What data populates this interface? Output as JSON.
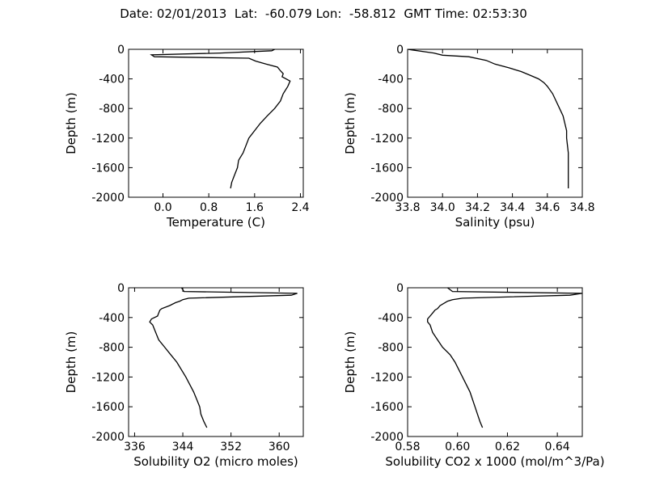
{
  "title": "Date: 02/01/2013  Lat:  -60.079 Lon:  -58.812  GMT Time: 02:53:30",
  "chart_data": [
    {
      "type": "line",
      "xlabel": "Temperature (C)",
      "ylabel": "Depth (m)",
      "xlim": [
        -0.6,
        2.45
      ],
      "ylim": [
        -2000,
        0
      ],
      "xticks": [
        0.0,
        0.8,
        1.6,
        2.4
      ],
      "xtick_labels": [
        "0.0",
        "0.8",
        "1.6",
        "2.4"
      ],
      "yticks": [
        0,
        -400,
        -800,
        -1200,
        -1600,
        -2000
      ],
      "ytick_labels": [
        "0",
        "-400",
        "-800",
        "-1200",
        "-1600",
        "-2000"
      ],
      "series": [
        {
          "depth": [
            0,
            -20,
            -50,
            -75,
            -100,
            -120,
            -160,
            -200,
            -240,
            -290,
            -330,
            -370,
            -430,
            -500,
            -600,
            -700,
            -800,
            -900,
            -1000,
            -1200,
            -1400,
            -1500,
            -1600,
            -1700,
            -1800,
            -1880
          ],
          "values": [
            1.95,
            1.9,
            1.0,
            -0.2,
            -0.15,
            1.5,
            1.62,
            1.8,
            2.0,
            2.05,
            2.1,
            2.08,
            2.22,
            2.18,
            2.1,
            2.05,
            1.95,
            1.82,
            1.7,
            1.5,
            1.4,
            1.32,
            1.3,
            1.25,
            1.2,
            1.18
          ]
        }
      ]
    },
    {
      "type": "line",
      "xlabel": "Salinity (psu)",
      "ylabel": "Depth (m)",
      "xlim": [
        33.8,
        34.8
      ],
      "ylim": [
        -2000,
        0
      ],
      "xticks": [
        33.8,
        34.0,
        34.2,
        34.4,
        34.6,
        34.8
      ],
      "xtick_labels": [
        "33.8",
        "34.0",
        "34.2",
        "34.4",
        "34.6",
        "34.8"
      ],
      "yticks": [
        0,
        -400,
        -800,
        -1200,
        -1600,
        -2000
      ],
      "ytick_labels": [
        "0",
        "-400",
        "-800",
        "-1200",
        "-1600",
        "-2000"
      ],
      "series": [
        {
          "depth": [
            0,
            -50,
            -80,
            -100,
            -150,
            -200,
            -250,
            -300,
            -350,
            -400,
            -450,
            -500,
            -600,
            -700,
            -800,
            -900,
            -1000,
            -1100,
            -1200,
            -1400,
            -1600,
            -1880
          ],
          "values": [
            33.8,
            33.95,
            34.0,
            34.15,
            34.25,
            34.3,
            34.38,
            34.45,
            34.5,
            34.55,
            34.58,
            34.6,
            34.63,
            34.65,
            34.67,
            34.69,
            34.7,
            34.71,
            34.71,
            34.72,
            34.72,
            34.72
          ]
        }
      ]
    },
    {
      "type": "line",
      "xlabel": "Solubility O2 (micro moles)",
      "ylabel": "Depth (m)",
      "xlim": [
        335,
        364
      ],
      "ylim": [
        -2000,
        0
      ],
      "xticks": [
        336,
        344,
        352,
        360
      ],
      "xtick_labels": [
        "336",
        "344",
        "352",
        "360"
      ],
      "yticks": [
        0,
        -400,
        -800,
        -1200,
        -1600,
        -2000
      ],
      "ytick_labels": [
        "0",
        "-400",
        "-800",
        "-1200",
        "-1600",
        "-2000"
      ],
      "series": [
        {
          "depth": [
            0,
            -50,
            -75,
            -100,
            -140,
            -160,
            -180,
            -200,
            -240,
            -280,
            -300,
            -340,
            -380,
            -420,
            -460,
            -500,
            -600,
            -700,
            -800,
            -900,
            -1000,
            -1200,
            -1400,
            -1500,
            -1600,
            -1700,
            -1800,
            -1880
          ],
          "values": [
            343.8,
            344.2,
            363.0,
            362.0,
            345.0,
            344.0,
            343.5,
            342.8,
            341.8,
            340.5,
            340.2,
            340.0,
            339.8,
            338.8,
            338.5,
            339.0,
            339.5,
            340.0,
            341.0,
            342.0,
            343.0,
            344.5,
            345.8,
            346.3,
            346.8,
            347.0,
            347.5,
            348.0
          ]
        }
      ]
    },
    {
      "type": "line",
      "xlabel": "Solubility CO2 x 1000 (mol/m^3/Pa)",
      "ylabel": "Depth (m)",
      "xlim": [
        0.58,
        0.65
      ],
      "ylim": [
        -2000,
        0
      ],
      "xticks": [
        0.58,
        0.6,
        0.62,
        0.64
      ],
      "xtick_labels": [
        "0.58",
        "0.60",
        "0.62",
        "0.64"
      ],
      "yticks": [
        0,
        -400,
        -800,
        -1200,
        -1600,
        -2000
      ],
      "ytick_labels": [
        "0",
        "-400",
        "-800",
        "-1200",
        "-1600",
        "-2000"
      ],
      "series": [
        {
          "depth": [
            0,
            -50,
            -75,
            -100,
            -140,
            -160,
            -180,
            -200,
            -240,
            -280,
            -300,
            -340,
            -380,
            -420,
            -460,
            -500,
            -600,
            -700,
            -800,
            -900,
            -1000,
            -1200,
            -1400,
            -1500,
            -1600,
            -1700,
            -1800,
            -1880
          ],
          "values": [
            0.596,
            0.598,
            0.65,
            0.645,
            0.602,
            0.598,
            0.596,
            0.595,
            0.593,
            0.592,
            0.591,
            0.59,
            0.589,
            0.588,
            0.588,
            0.589,
            0.59,
            0.592,
            0.594,
            0.597,
            0.599,
            0.602,
            0.605,
            0.606,
            0.607,
            0.608,
            0.609,
            0.61
          ]
        }
      ]
    }
  ]
}
